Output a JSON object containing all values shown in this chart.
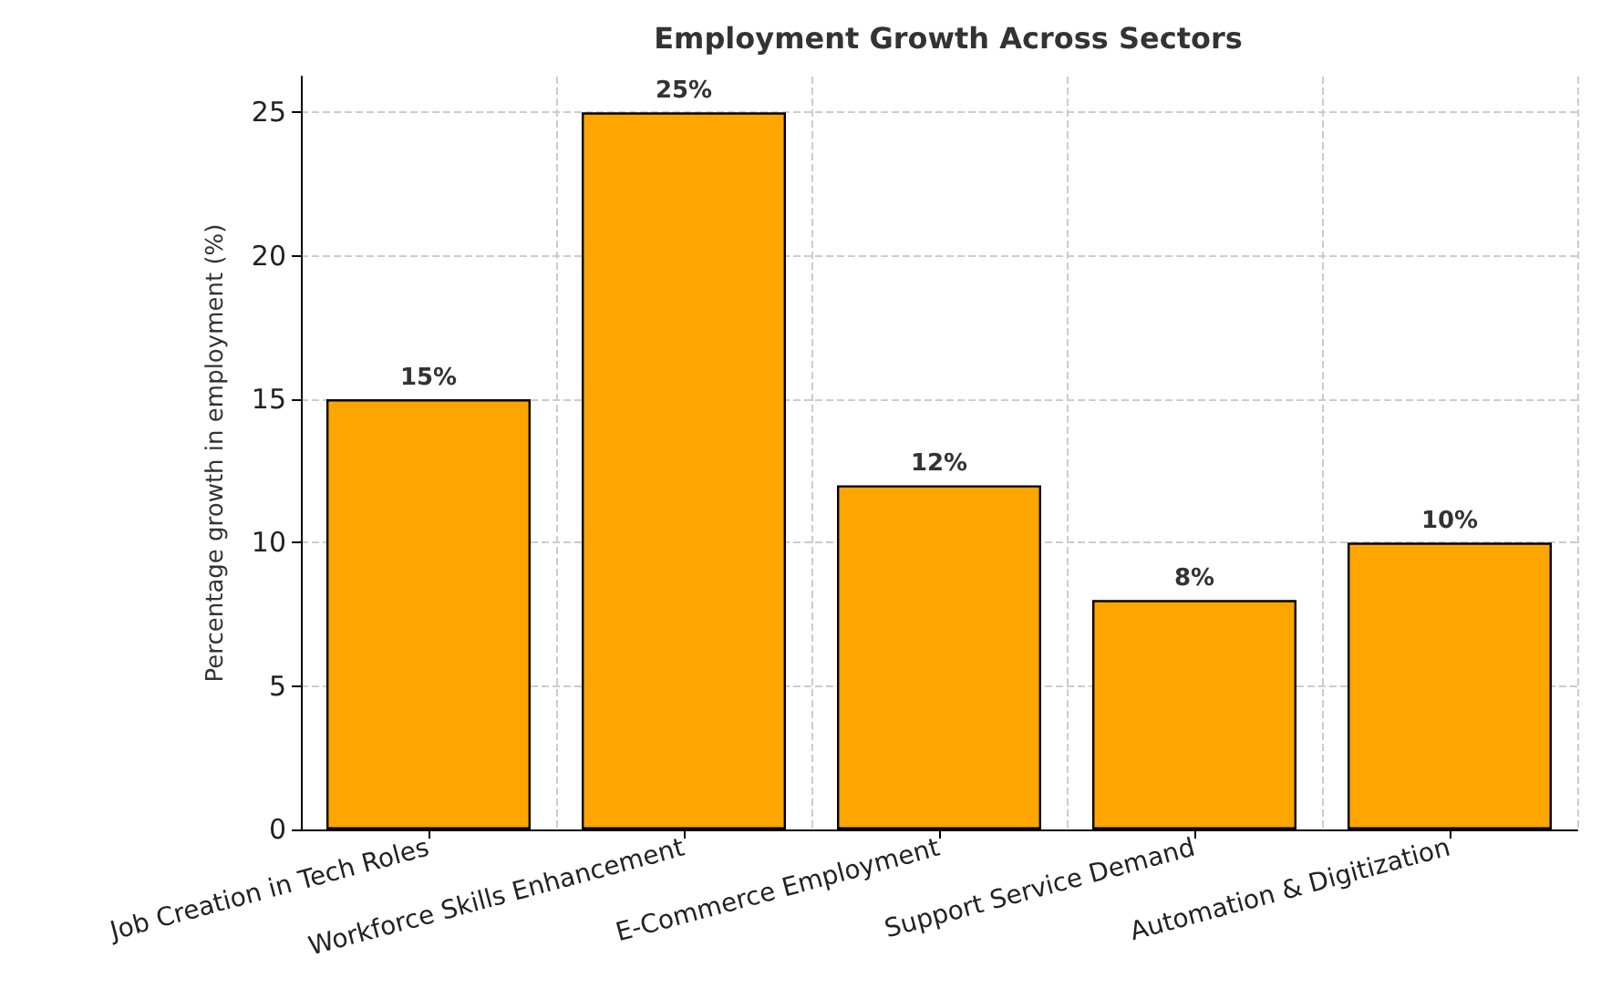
{
  "chart_data": {
    "type": "bar",
    "title": "Employment Growth Across Sectors",
    "ylabel": "Percentage growth in employment (%)",
    "categories": [
      "Job Creation in Tech Roles",
      "Workforce Skills Enhancement",
      "E-Commerce Employment",
      "Support Service Demand",
      "Automation & Digitization"
    ],
    "values": [
      15,
      25,
      12,
      8,
      10
    ],
    "value_labels": [
      "15%",
      "25%",
      "12%",
      "8%",
      "10%"
    ],
    "color": "#ffa500",
    "ylim": [
      0,
      26.25
    ],
    "yticks": [
      0,
      5,
      10,
      15,
      20,
      25
    ],
    "grid": true
  }
}
